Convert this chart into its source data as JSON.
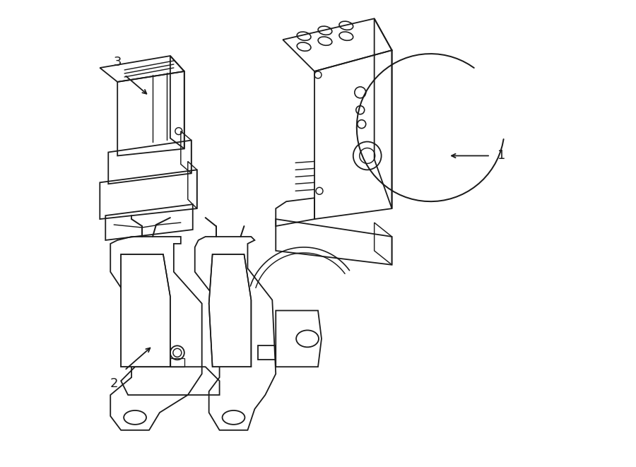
{
  "background_color": "#ffffff",
  "line_color": "#1a1a1a",
  "line_width": 1.3,
  "fig_width": 9.0,
  "fig_height": 6.61,
  "dpi": 100,
  "label_fontsize": 13
}
